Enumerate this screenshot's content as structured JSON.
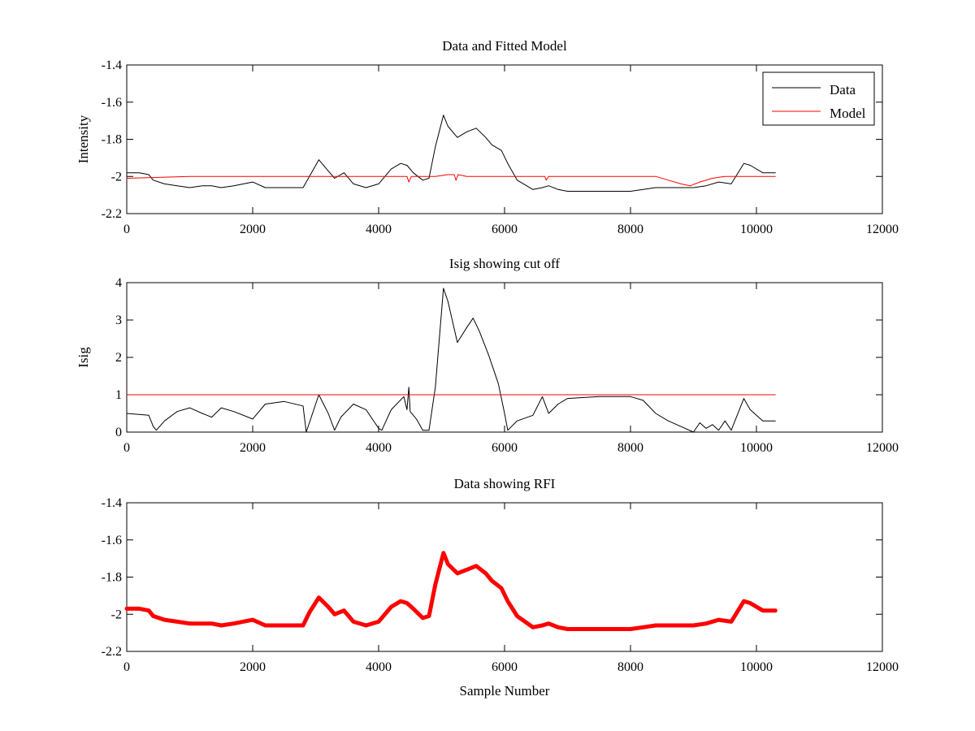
{
  "chart_data": [
    {
      "type": "line",
      "title": "Data and Fitted Model",
      "xlabel": "",
      "ylabel": "Intensity",
      "xlim": [
        0,
        12000
      ],
      "ylim": [
        -2.2,
        -1.4
      ],
      "xticks": [
        0,
        2000,
        4000,
        6000,
        8000,
        10000,
        12000
      ],
      "yticks": [
        -2.2,
        -2,
        -1.8,
        -1.6,
        -1.4
      ],
      "xtick_labels": [
        "0",
        "2000",
        "4000",
        "6000",
        "8000",
        "10000",
        "12000"
      ],
      "ytick_labels": [
        "-2.2",
        "-2",
        "-1.8",
        "-1.6",
        "-1.4"
      ],
      "legend": {
        "placement": "top-right"
      },
      "series": [
        {
          "name": "Data",
          "color": "#000000",
          "x": [
            0,
            200,
            350,
            420,
            600,
            800,
            1000,
            1200,
            1350,
            1500,
            1700,
            2000,
            2200,
            2500,
            2800,
            2900,
            3050,
            3200,
            3300,
            3450,
            3600,
            3800,
            4000,
            4200,
            4350,
            4450,
            4550,
            4700,
            4800,
            4900,
            5030,
            5100,
            5250,
            5400,
            5550,
            5700,
            5800,
            5950,
            6050,
            6200,
            6450,
            6600,
            6700,
            6850,
            7000,
            7500,
            8000,
            8200,
            8400,
            8600,
            8800,
            9000,
            9200,
            9400,
            9600,
            9800,
            9900,
            10100,
            10300
          ],
          "y": [
            -1.98,
            -1.98,
            -1.99,
            -2.02,
            -2.04,
            -2.05,
            -2.06,
            -2.05,
            -2.05,
            -2.06,
            -2.05,
            -2.03,
            -2.06,
            -2.06,
            -2.06,
            -2.0,
            -1.91,
            -1.97,
            -2.01,
            -1.98,
            -2.04,
            -2.06,
            -2.04,
            -1.96,
            -1.93,
            -1.94,
            -1.98,
            -2.02,
            -2.01,
            -1.84,
            -1.67,
            -1.73,
            -1.79,
            -1.76,
            -1.74,
            -1.79,
            -1.83,
            -1.86,
            -1.93,
            -2.02,
            -2.07,
            -2.06,
            -2.05,
            -2.07,
            -2.08,
            -2.08,
            -2.08,
            -2.07,
            -2.06,
            -2.06,
            -2.06,
            -2.06,
            -2.05,
            -2.03,
            -2.04,
            -1.93,
            -1.94,
            -1.98,
            -1.98
          ]
        },
        {
          "name": "Model",
          "color": "#ff0000",
          "x": [
            0,
            1000,
            2000,
            3000,
            4000,
            4450,
            4480,
            4520,
            4700,
            4900,
            5100,
            5200,
            5230,
            5260,
            5400,
            6000,
            6640,
            6660,
            6700,
            7000,
            8000,
            8400,
            8600,
            8800,
            8950,
            9100,
            9300,
            9500,
            9700,
            10300
          ],
          "y": [
            -2.01,
            -2.0,
            -2.0,
            -2.0,
            -2.0,
            -2.0,
            -2.03,
            -2.0,
            -2.0,
            -2.0,
            -1.99,
            -1.99,
            -2.02,
            -1.99,
            -2.0,
            -2.0,
            -2.0,
            -2.02,
            -2.0,
            -2.0,
            -2.0,
            -2.0,
            -2.02,
            -2.04,
            -2.05,
            -2.03,
            -2.01,
            -2.0,
            -2.0,
            -2.0
          ]
        }
      ]
    },
    {
      "type": "line",
      "title": "Isig showing cut off",
      "xlabel": "",
      "ylabel": "Isig",
      "xlim": [
        0,
        12000
      ],
      "ylim": [
        0,
        4
      ],
      "xticks": [
        0,
        2000,
        4000,
        6000,
        8000,
        10000,
        12000
      ],
      "yticks": [
        0,
        1,
        2,
        3,
        4
      ],
      "xtick_labels": [
        "0",
        "2000",
        "4000",
        "6000",
        "8000",
        "10000",
        "12000"
      ],
      "ytick_labels": [
        "0",
        "1",
        "2",
        "3",
        "4"
      ],
      "series": [
        {
          "color": "#000000",
          "x": [
            0,
            350,
            420,
            470,
            600,
            800,
            1000,
            1200,
            1350,
            1500,
            1700,
            2000,
            2200,
            2500,
            2800,
            2850,
            3050,
            3200,
            3300,
            3400,
            3600,
            3800,
            4000,
            4050,
            4200,
            4400,
            4450,
            4480,
            4500,
            4600,
            4700,
            4800,
            4900,
            5030,
            5100,
            5250,
            5400,
            5500,
            5600,
            5750,
            5900,
            6000,
            6050,
            6200,
            6450,
            6600,
            6700,
            6850,
            7000,
            7500,
            8000,
            8200,
            8400,
            8600,
            8800,
            9000,
            9100,
            9200,
            9300,
            9400,
            9500,
            9600,
            9800,
            9900,
            10100,
            10300
          ],
          "y": [
            0.5,
            0.45,
            0.15,
            0.05,
            0.3,
            0.55,
            0.65,
            0.5,
            0.4,
            0.65,
            0.55,
            0.35,
            0.75,
            0.82,
            0.7,
            0.0,
            1.0,
            0.5,
            0.05,
            0.4,
            0.75,
            0.6,
            0.1,
            0.05,
            0.6,
            0.95,
            0.6,
            1.2,
            0.55,
            0.35,
            0.05,
            0.05,
            1.2,
            3.85,
            3.5,
            2.4,
            2.8,
            3.05,
            2.7,
            2.05,
            1.3,
            0.5,
            0.05,
            0.3,
            0.45,
            0.95,
            0.5,
            0.75,
            0.9,
            0.95,
            0.95,
            0.85,
            0.5,
            0.3,
            0.15,
            0.0,
            0.25,
            0.1,
            0.2,
            0.05,
            0.3,
            0.05,
            0.9,
            0.6,
            0.3,
            0.3
          ]
        },
        {
          "color": "#ff0000",
          "x": [
            0,
            10300
          ],
          "y": [
            1.0,
            1.0
          ]
        }
      ]
    },
    {
      "type": "line",
      "title": "Data showing RFI",
      "xlabel": "Sample Number",
      "ylabel": "",
      "xlim": [
        0,
        12000
      ],
      "ylim": [
        -2.2,
        -1.4
      ],
      "xticks": [
        0,
        2000,
        4000,
        6000,
        8000,
        10000,
        12000
      ],
      "yticks": [
        -2.2,
        -2,
        -1.8,
        -1.6,
        -1.4
      ],
      "xtick_labels": [
        "0",
        "2000",
        "4000",
        "6000",
        "8000",
        "10000",
        "12000"
      ],
      "ytick_labels": [
        "-2.2",
        "-2",
        "-1.8",
        "-1.6",
        "-1.4"
      ],
      "series": [
        {
          "color": "#ff0000",
          "x": [
            0,
            200,
            350,
            420,
            600,
            800,
            1000,
            1200,
            1350,
            1500,
            1700,
            2000,
            2200,
            2500,
            2800,
            2900,
            3050,
            3200,
            3300,
            3450,
            3600,
            3800,
            4000,
            4200,
            4350,
            4450,
            4550,
            4700,
            4800,
            4900,
            5030,
            5100,
            5250,
            5400,
            5550,
            5700,
            5800,
            5950,
            6050,
            6200,
            6450,
            6600,
            6700,
            6850,
            7000,
            7500,
            8000,
            8200,
            8400,
            8600,
            8800,
            9000,
            9200,
            9400,
            9600,
            9800,
            9900,
            10100,
            10300
          ],
          "y": [
            -1.97,
            -1.97,
            -1.98,
            -2.01,
            -2.03,
            -2.04,
            -2.05,
            -2.05,
            -2.05,
            -2.06,
            -2.05,
            -2.03,
            -2.06,
            -2.06,
            -2.06,
            -1.99,
            -1.91,
            -1.96,
            -2.0,
            -1.98,
            -2.04,
            -2.06,
            -2.04,
            -1.96,
            -1.93,
            -1.94,
            -1.97,
            -2.02,
            -2.01,
            -1.84,
            -1.67,
            -1.73,
            -1.78,
            -1.76,
            -1.74,
            -1.78,
            -1.82,
            -1.86,
            -1.93,
            -2.01,
            -2.07,
            -2.06,
            -2.05,
            -2.07,
            -2.08,
            -2.08,
            -2.08,
            -2.07,
            -2.06,
            -2.06,
            -2.06,
            -2.06,
            -2.05,
            -2.03,
            -2.04,
            -1.93,
            -1.94,
            -1.98,
            -1.98
          ]
        }
      ]
    }
  ]
}
